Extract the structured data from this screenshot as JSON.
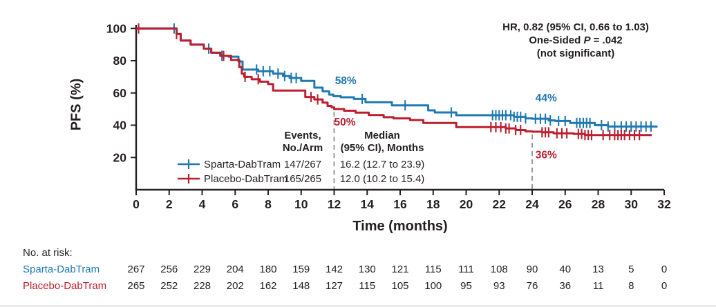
{
  "stats": {
    "line1": "HR, 0.82 (95% CI, 0.66 to 1.03)",
    "line2_prefix": "One-Sided ",
    "line2_italic": "P",
    "line2_suffix": " = .042",
    "line3": "(not significant)"
  },
  "legend": {
    "events_header_line1": "Events,",
    "events_header_line2": "No./Arm",
    "median_header_line1": "Median",
    "median_header_line2": "(95% CI), Months",
    "rows": [
      {
        "name": "Sparta-DabTram",
        "events": "147/267",
        "median": "16.2 (12.7 to 23.9)",
        "color": "#1f78b1"
      },
      {
        "name": "Placebo-DabTram",
        "events": "165/265",
        "median": "12.0 (10.2 to 15.4)",
        "color": "#bb1f2f"
      }
    ]
  },
  "risk_table": {
    "title": "No. at risk:",
    "rows": [
      {
        "name": "Sparta-DabTram",
        "color": "#1f78b1",
        "values": [
          267,
          256,
          229,
          204,
          180,
          159,
          142,
          130,
          121,
          115,
          111,
          108,
          90,
          40,
          13,
          5,
          0
        ]
      },
      {
        "name": "Placebo-DabTram",
        "color": "#bb1f2f",
        "values": [
          265,
          252,
          228,
          202,
          162,
          148,
          127,
          115,
          105,
          100,
          95,
          93,
          76,
          36,
          11,
          8,
          0
        ]
      }
    ]
  },
  "chart_data": {
    "type": "line",
    "subtype": "kaplan-meier-step",
    "xlabel": "Time (months)",
    "ylabel": "PFS (%)",
    "xlim": [
      0,
      32
    ],
    "ylim": [
      0,
      102
    ],
    "xticks": [
      0,
      2,
      4,
      6,
      8,
      10,
      12,
      14,
      16,
      18,
      20,
      22,
      24,
      26,
      28,
      30,
      32
    ],
    "yticks": [
      20,
      40,
      60,
      80,
      100
    ],
    "grid": false,
    "legend_position": "inside-lower-left",
    "axis_color": "#231f20",
    "dash_color": "#9a9a9a",
    "series": [
      {
        "name": "Sparta-DabTram",
        "color": "#1f78b1",
        "steps": [
          [
            0,
            100
          ],
          [
            2.3,
            100
          ],
          [
            2.45,
            96.5
          ],
          [
            2.7,
            92.5
          ],
          [
            3.3,
            90
          ],
          [
            4.1,
            87.5
          ],
          [
            4.55,
            85
          ],
          [
            5.1,
            83
          ],
          [
            5.6,
            82.5
          ],
          [
            6.2,
            79.5
          ],
          [
            6.45,
            74.5
          ],
          [
            7.4,
            73.5
          ],
          [
            8.3,
            72
          ],
          [
            8.9,
            70.5
          ],
          [
            9.3,
            69.3
          ],
          [
            10.0,
            67.5
          ],
          [
            10.8,
            63.3
          ],
          [
            11.3,
            61
          ],
          [
            11.7,
            59
          ],
          [
            11.95,
            58
          ],
          [
            12.4,
            57.3
          ],
          [
            13.2,
            56.3
          ],
          [
            13.9,
            54.3
          ],
          [
            15.5,
            52.3
          ],
          [
            17.7,
            49.2
          ],
          [
            18.1,
            47.9
          ],
          [
            19.4,
            46.2
          ],
          [
            22.9,
            45.2
          ],
          [
            23.6,
            44.2
          ],
          [
            24.0,
            44
          ],
          [
            25.0,
            43
          ],
          [
            25.4,
            42.6
          ],
          [
            26.3,
            41.4
          ],
          [
            27.8,
            40
          ],
          [
            28.6,
            39.2
          ],
          [
            31.6,
            39.2
          ]
        ],
        "censors": [
          2.3,
          4.4,
          5.2,
          7.3,
          7.7,
          8.1,
          8.6,
          9.0,
          9.4,
          9.7,
          13.7,
          16.3,
          19.1,
          21.6,
          21.8,
          22.0,
          22.2,
          22.4,
          22.7,
          22.9,
          23.1,
          23.3,
          23.6,
          24.2,
          24.5,
          24.8,
          25.1,
          25.6,
          26.0,
          26.7,
          26.9,
          27.1,
          27.3,
          27.5,
          28.2,
          28.6,
          29.0,
          29.4,
          29.7,
          30.0,
          30.3,
          30.6,
          30.9,
          31.2
        ]
      },
      {
        "name": "Placebo-DabTram",
        "color": "#bb1f2f",
        "steps": [
          [
            0,
            100
          ],
          [
            2.3,
            100
          ],
          [
            2.45,
            96.5
          ],
          [
            2.7,
            92.5
          ],
          [
            3.3,
            90
          ],
          [
            4.1,
            87.5
          ],
          [
            4.55,
            85
          ],
          [
            5.1,
            83
          ],
          [
            5.75,
            80.5
          ],
          [
            6.25,
            76
          ],
          [
            6.4,
            72
          ],
          [
            6.55,
            70
          ],
          [
            7.0,
            68.5
          ],
          [
            7.5,
            67
          ],
          [
            8.0,
            65.5
          ],
          [
            8.3,
            61.5
          ],
          [
            10.25,
            57.5
          ],
          [
            10.8,
            56
          ],
          [
            11.3,
            54
          ],
          [
            11.6,
            52
          ],
          [
            11.85,
            51
          ],
          [
            12.0,
            50
          ],
          [
            12.6,
            49
          ],
          [
            13.3,
            47.8
          ],
          [
            14.1,
            46.3
          ],
          [
            15.0,
            45
          ],
          [
            15.6,
            44.2
          ],
          [
            16.6,
            43.2
          ],
          [
            17.4,
            41.4
          ],
          [
            19.4,
            38.8
          ],
          [
            22.4,
            38
          ],
          [
            23.0,
            37
          ],
          [
            23.6,
            36.2
          ],
          [
            24.0,
            36
          ],
          [
            24.6,
            35.6
          ],
          [
            25.3,
            35
          ],
          [
            26.5,
            34.6
          ],
          [
            27.2,
            33.9
          ],
          [
            31.25,
            33.9
          ]
        ],
        "censors": [
          0.15,
          2.45,
          5.3,
          6.6,
          7.4,
          10.6,
          11.0,
          21.5,
          21.8,
          22.1,
          22.4,
          22.6,
          23.0,
          23.3,
          24.6,
          24.8,
          25.0,
          25.5,
          25.8,
          26.1,
          26.8,
          27.0,
          27.2,
          27.4,
          27.6,
          28.3,
          28.7,
          29.0,
          29.2,
          29.4,
          29.6,
          29.9,
          30.2,
          30.5
        ]
      }
    ],
    "reference_lines": [
      {
        "x": 12,
        "from_pct": 50
      },
      {
        "x": 24,
        "from_pct": 36
      }
    ],
    "annotations": [
      {
        "text": "58%",
        "x": 12.7,
        "y": 67.5,
        "color": "#1f78b1"
      },
      {
        "text": "50%",
        "x": 12.65,
        "y": 42.0,
        "color": "#bb1f2f"
      },
      {
        "text": "44%",
        "x": 24.85,
        "y": 57.0,
        "color": "#1f78b1"
      },
      {
        "text": "36%",
        "x": 24.85,
        "y": 21.5,
        "color": "#bb1f2f"
      }
    ]
  }
}
